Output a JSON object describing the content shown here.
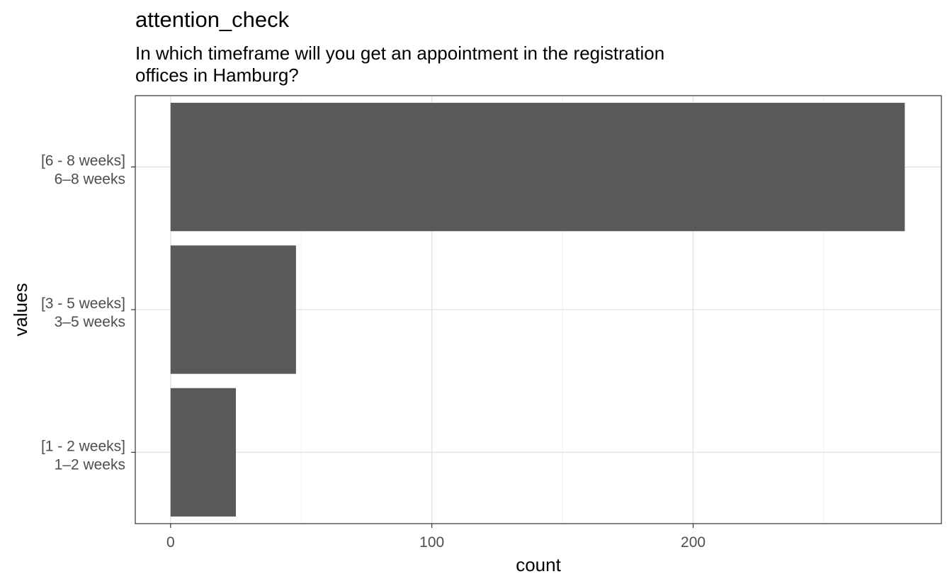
{
  "chart_data": {
    "type": "bar",
    "orientation": "horizontal",
    "title": "attention_check",
    "subtitle_lines": [
      "In which timeframe will you get an appointment in the registration",
      "offices in Hamburg?"
    ],
    "xlabel": "count",
    "ylabel": "values",
    "categories": [
      {
        "line1": "[6 - 8 weeks]",
        "line2": "6–8 weeks"
      },
      {
        "line1": "[3 - 5 weeks]",
        "line2": "3–5 weeks"
      },
      {
        "line1": "[1 - 2 weeks]",
        "line2": "1–2 weeks"
      }
    ],
    "values": [
      281,
      48,
      25
    ],
    "xlim": [
      -13.5,
      295
    ],
    "xticks": [
      0,
      100,
      200
    ],
    "grid": true,
    "bar_color": "#595959"
  }
}
